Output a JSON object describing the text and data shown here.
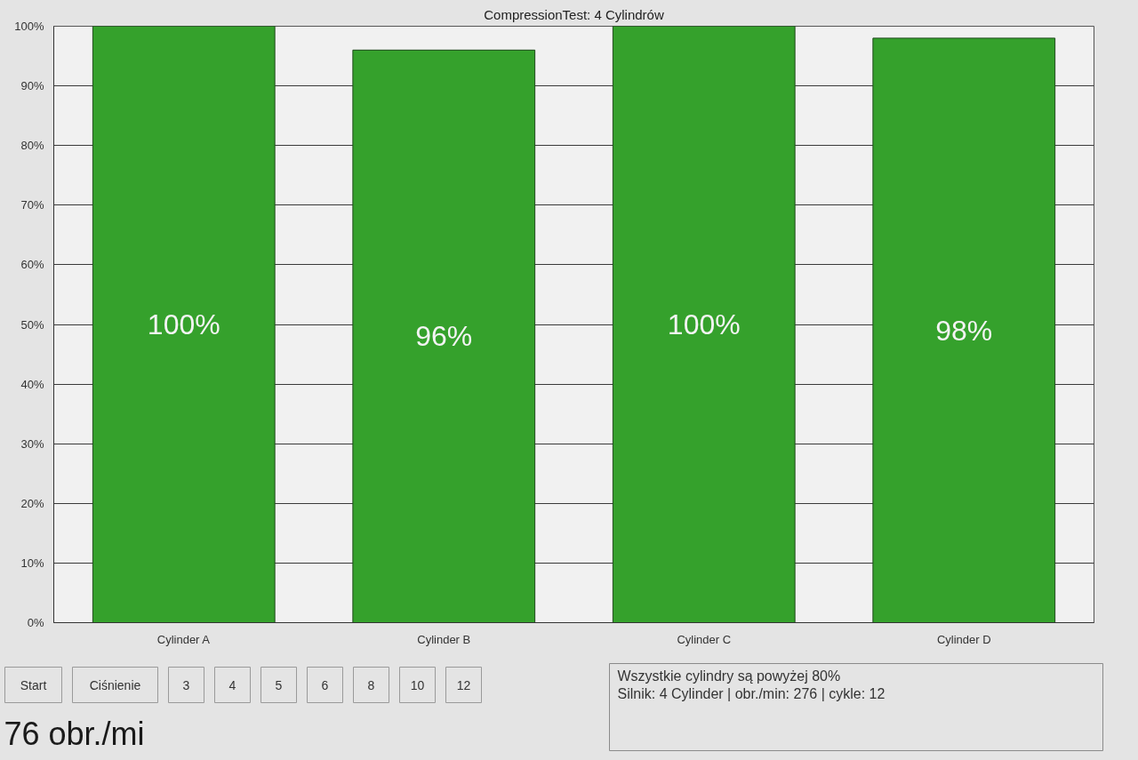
{
  "chart_data": {
    "type": "bar",
    "title": "CompressionTest: 4 Cylindrów",
    "categories": [
      "Cylinder A",
      "Cylinder B",
      "Cylinder C",
      "Cylinder D"
    ],
    "values": [
      100,
      96,
      100,
      98
    ],
    "color": "#35a12c",
    "value_labels": [
      "100%",
      "96%",
      "100%",
      "98%"
    ],
    "ylim": [
      0,
      100
    ],
    "yticks": [
      {
        "value": 0,
        "label": "0%"
      },
      {
        "value": 10,
        "label": "10%"
      },
      {
        "value": 20,
        "label": "20%"
      },
      {
        "value": 30,
        "label": "30%"
      },
      {
        "value": 40,
        "label": "40%"
      },
      {
        "value": 50,
        "label": "50%"
      },
      {
        "value": 60,
        "label": "60%"
      },
      {
        "value": 70,
        "label": "70%"
      },
      {
        "value": 80,
        "label": "80%"
      },
      {
        "value": 90,
        "label": "90%"
      },
      {
        "value": 100,
        "label": "100%"
      }
    ],
    "grid": "y",
    "annotations": [
      "Start",
      "Ciśnienie",
      "3",
      "4",
      "5",
      "6",
      "8",
      "10",
      "12",
      "Wszystkie cylindry są powyżej 80%",
      "Silnik: 4 Cylinder | obr./min: 276 | cykle: 12",
      "76 obr./mi"
    ]
  }
}
